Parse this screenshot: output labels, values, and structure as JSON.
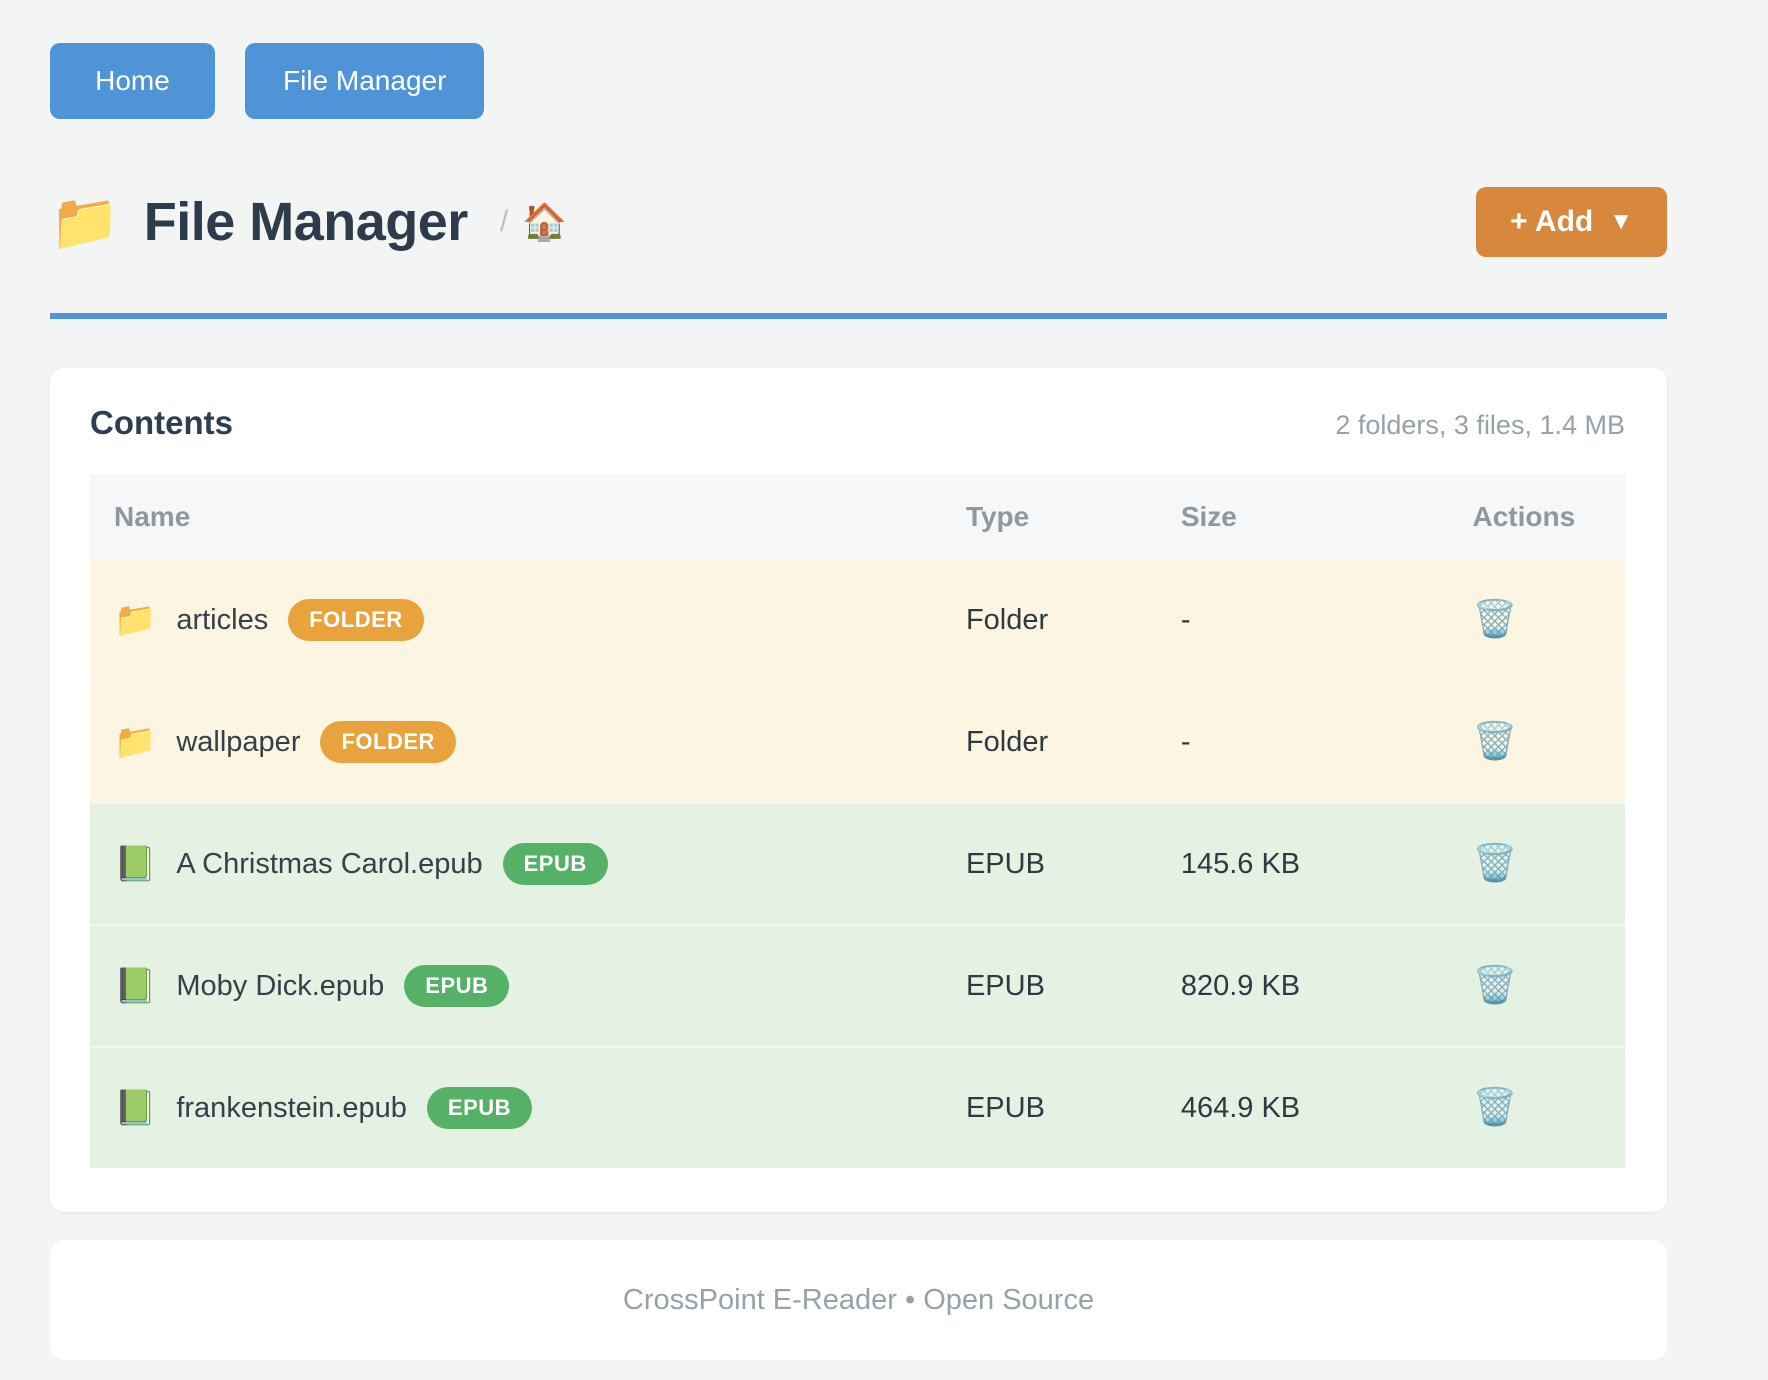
{
  "nav": {
    "home_label": "Home",
    "file_manager_label": "File Manager"
  },
  "header": {
    "title_icon": "📁",
    "title": "File Manager",
    "breadcrumb_separator": "/",
    "breadcrumb_home_icon": "🏠",
    "add_button_label": "+ Add",
    "add_button_caret": "▼"
  },
  "contents": {
    "title": "Contents",
    "summary": "2 folders, 3 files, 1.4 MB",
    "columns": [
      "Name",
      "Type",
      "Size",
      "Actions"
    ],
    "trash_icon": "🗑️",
    "rows": [
      {
        "icon": "📁",
        "name": "articles",
        "badge": "FOLDER",
        "kind": "folder",
        "type": "Folder",
        "size": "-"
      },
      {
        "icon": "📁",
        "name": "wallpaper",
        "badge": "FOLDER",
        "kind": "folder",
        "type": "Folder",
        "size": "-"
      },
      {
        "icon": "📗",
        "name": "A Christmas Carol.epub",
        "badge": "EPUB",
        "kind": "epub",
        "type": "EPUB",
        "size": "145.6 KB"
      },
      {
        "icon": "📗",
        "name": "Moby Dick.epub",
        "badge": "EPUB",
        "kind": "epub",
        "type": "EPUB",
        "size": "820.9 KB"
      },
      {
        "icon": "📗",
        "name": "frankenstein.epub",
        "badge": "EPUB",
        "kind": "epub",
        "type": "EPUB",
        "size": "464.9 KB"
      }
    ]
  },
  "footer": {
    "text": "CrossPoint E-Reader • Open Source"
  },
  "colors": {
    "accent_blue": "#4f94d6",
    "accent_orange": "#d8883c",
    "folder_badge": "#e8a33d",
    "epub_badge": "#55b166",
    "folder_row_bg": "#fcf5e1",
    "epub_row_bg": "#e5f1e3"
  }
}
